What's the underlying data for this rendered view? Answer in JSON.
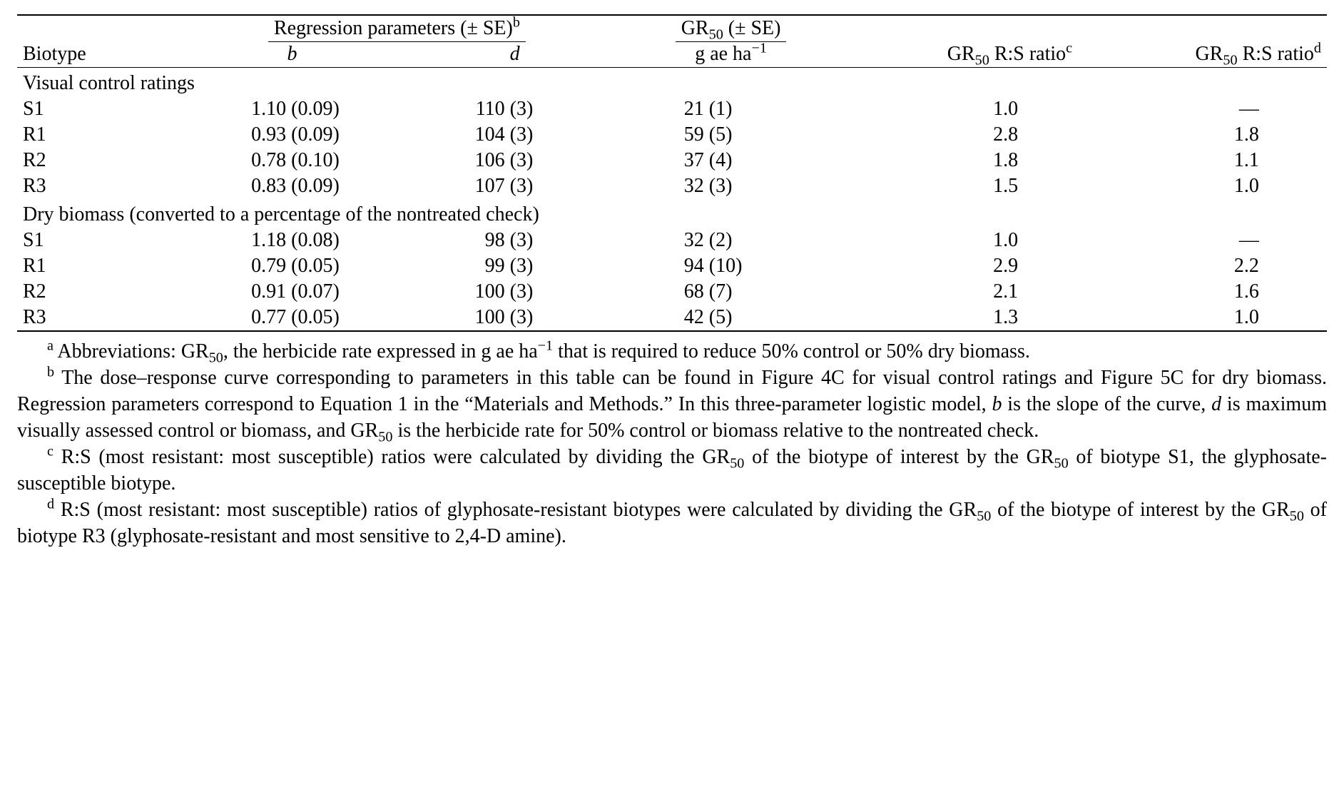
{
  "table": {
    "font_family": "Garamond/serif",
    "font_size_pt": 21,
    "text_color": "#000000",
    "background_color": "#ffffff",
    "rule_color": "#000000",
    "columns": {
      "biotype": "Biotype",
      "regression_span_html": "Regression parameters (± SE)<sup>b</sup>",
      "b_html": "<span class='ital'>b</span>",
      "d_html": "<span class='ital'>d</span>",
      "gr50_span_html": "GR<sub>50</sub> (± SE)",
      "gr50_unit_html": "g ae ha<sup>−1</sup>",
      "ratio_c_html": "GR<sub>50</sub> R:S ratio<sup>c</sup>",
      "ratio_d_html": "GR<sub>50</sub> R:S ratio<sup>d</sup>"
    },
    "sections": [
      {
        "title": "Visual control ratings",
        "rows": [
          {
            "biotype": "S1",
            "b": "1.10",
            "b_se": "(0.09)",
            "d": "110",
            "d_se": "(3)",
            "gr50": "21",
            "gr50_se": "(1)",
            "rc": "1.0",
            "rd": "—"
          },
          {
            "biotype": "R1",
            "b": "0.93",
            "b_se": "(0.09)",
            "d": "104",
            "d_se": "(3)",
            "gr50": "59",
            "gr50_se": "(5)",
            "rc": "2.8",
            "rd": "1.8"
          },
          {
            "biotype": "R2",
            "b": "0.78",
            "b_se": "(0.10)",
            "d": "106",
            "d_se": "(3)",
            "gr50": "37",
            "gr50_se": "(4)",
            "rc": "1.8",
            "rd": "1.1"
          },
          {
            "biotype": "R3",
            "b": "0.83",
            "b_se": "(0.09)",
            "d": "107",
            "d_se": "(3)",
            "gr50": "32",
            "gr50_se": "(3)",
            "rc": "1.5",
            "rd": "1.0"
          }
        ]
      },
      {
        "title": "Dry biomass (converted to a percentage of the nontreated check)",
        "rows": [
          {
            "biotype": "S1",
            "b": "1.18",
            "b_se": "(0.08)",
            "d": "98",
            "d_se": "(3)",
            "gr50": "32",
            "gr50_se": "(2)",
            "rc": "1.0",
            "rd": "—"
          },
          {
            "biotype": "R1",
            "b": "0.79",
            "b_se": "(0.05)",
            "d": "99",
            "d_se": "(3)",
            "gr50": "94",
            "gr50_se": "(10)",
            "rc": "2.9",
            "rd": "2.2"
          },
          {
            "biotype": "R2",
            "b": "0.91",
            "b_se": "(0.07)",
            "d": "100",
            "d_se": "(3)",
            "gr50": "68",
            "gr50_se": "(7)",
            "rc": "2.1",
            "rd": "1.6"
          },
          {
            "biotype": "R3",
            "b": "0.77",
            "b_se": "(0.05)",
            "d": "100",
            "d_se": "(3)",
            "gr50": "42",
            "gr50_se": "(5)",
            "rc": "1.3",
            "rd": "1.0"
          }
        ]
      }
    ]
  },
  "notes": {
    "a_html": "<sup>a</sup> Abbreviations: GR<sub>50</sub>, the herbicide rate expressed in g ae ha<sup>−1</sup> that is required to reduce 50% control or 50% dry biomass.",
    "b_html": "<sup>b</sup> The dose–response curve corresponding to parameters in this table can be found in Figure 4C for visual control ratings and Figure 5C for dry biomass. Regression parameters correspond to Equation 1 in the “Materials and Methods.” In this three-parameter logistic model, <span class='ital'>b</span> is the slope of the curve, <span class='ital'>d</span> is maximum visually assessed control or biomass, and GR<sub>50</sub> is the herbicide rate for 50% control or biomass relative to the nontreated check.",
    "c_html": "<sup>c</sup> R:S (most resistant: most susceptible) ratios were calculated by dividing the GR<sub>50</sub> of the biotype of interest by the GR<sub>50</sub> of biotype S1, the glyphosate-susceptible biotype.",
    "d_html": "<sup>d</sup> R:S (most resistant: most susceptible) ratios of glyphosate-resistant biotypes were calculated by dividing the GR<sub>50</sub> of the biotype of interest by the GR<sub>50</sub> of biotype R3 (glyphosate-resistant and most sensitive to 2,4-D amine)."
  },
  "layout": {
    "col_widths_pct": [
      12,
      18,
      16,
      17,
      18,
      19
    ],
    "b_num_w_em": 2.3,
    "d_num_w_em": 2.1,
    "gr50_num_w_em": 1.4,
    "rc_pad_right_em": 3.0,
    "rd_pad_right_em": 3.4
  }
}
